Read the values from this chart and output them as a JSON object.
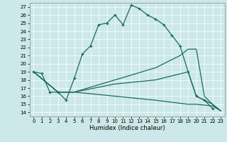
{
  "title": "",
  "xlabel": "Humidex (Indice chaleur)",
  "bg_color": "#cce8e8",
  "line_color": "#1a6b5e",
  "xlim": [
    -0.5,
    23.5
  ],
  "ylim": [
    13.5,
    27.5
  ],
  "xticks": [
    0,
    1,
    2,
    3,
    4,
    5,
    6,
    7,
    8,
    9,
    10,
    11,
    12,
    13,
    14,
    15,
    16,
    17,
    18,
    19,
    20,
    21,
    22,
    23
  ],
  "yticks": [
    14,
    15,
    16,
    17,
    18,
    19,
    20,
    21,
    22,
    23,
    24,
    25,
    26,
    27
  ],
  "series1": [
    [
      0,
      19
    ],
    [
      1,
      18.8
    ],
    [
      2,
      16.5
    ],
    [
      3,
      16.5
    ],
    [
      4,
      15.5
    ],
    [
      5,
      18.2
    ],
    [
      6,
      21.2
    ],
    [
      7,
      22.2
    ],
    [
      8,
      24.8
    ],
    [
      9,
      25.0
    ],
    [
      10,
      26.0
    ],
    [
      11,
      24.8
    ],
    [
      12,
      27.2
    ],
    [
      13,
      26.8
    ],
    [
      14,
      26.0
    ],
    [
      15,
      25.5
    ],
    [
      16,
      24.8
    ],
    [
      17,
      23.5
    ],
    [
      18,
      22.2
    ],
    [
      19,
      19.0
    ],
    [
      20,
      16.0
    ],
    [
      21,
      15.5
    ],
    [
      22,
      14.5
    ]
  ],
  "series2": [
    [
      0,
      19.0
    ],
    [
      3,
      16.5
    ],
    [
      4,
      16.5
    ],
    [
      5,
      16.5
    ],
    [
      10,
      18.0
    ],
    [
      15,
      19.5
    ],
    [
      18,
      21.0
    ],
    [
      19,
      21.8
    ],
    [
      20,
      21.8
    ],
    [
      21,
      16.0
    ],
    [
      22,
      15.0
    ],
    [
      23,
      14.2
    ]
  ],
  "series3": [
    [
      0,
      19.0
    ],
    [
      3,
      16.5
    ],
    [
      4,
      16.5
    ],
    [
      5,
      16.5
    ],
    [
      10,
      17.5
    ],
    [
      15,
      18.0
    ],
    [
      19,
      19.0
    ],
    [
      20,
      16.0
    ],
    [
      21,
      15.5
    ],
    [
      22,
      15.0
    ],
    [
      23,
      14.2
    ]
  ],
  "series4": [
    [
      0,
      19.0
    ],
    [
      3,
      16.5
    ],
    [
      4,
      16.5
    ],
    [
      5,
      16.5
    ],
    [
      10,
      16.0
    ],
    [
      15,
      15.5
    ],
    [
      19,
      15.0
    ],
    [
      20,
      15.0
    ],
    [
      22,
      14.8
    ],
    [
      23,
      14.2
    ]
  ]
}
